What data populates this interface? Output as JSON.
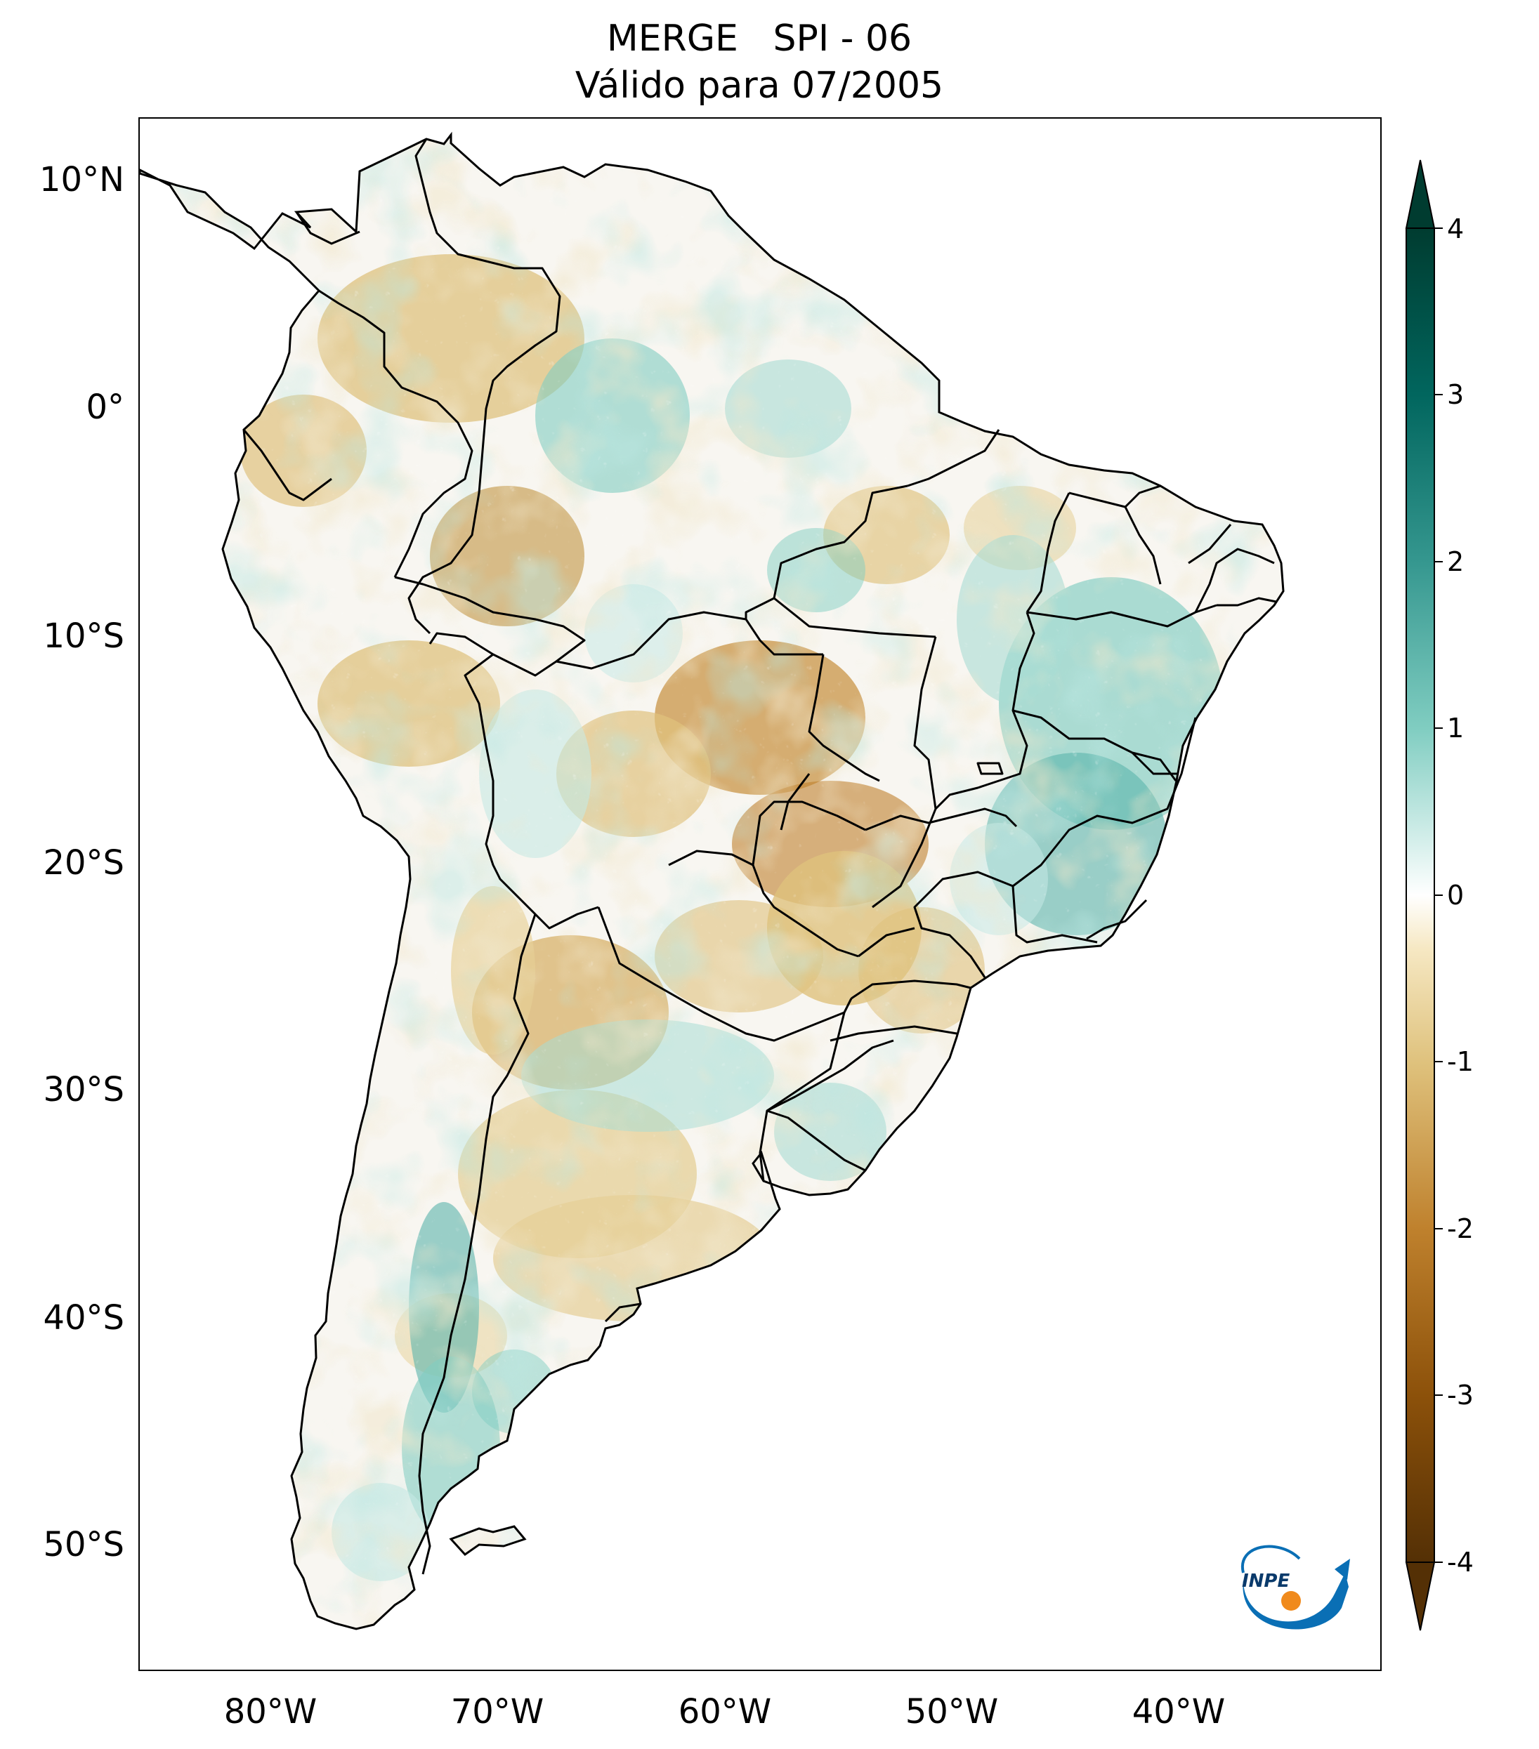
{
  "title": {
    "line1": "MERGE   SPI - 06",
    "line2": "Válido para 07/2005"
  },
  "axes": {
    "lat_labels": [
      "10°N",
      "0°",
      "10°S",
      "20°S",
      "30°S",
      "40°S",
      "50°S"
    ],
    "lon_labels": [
      "80°W",
      "70°W",
      "60°W",
      "50°W",
      "40°W"
    ]
  },
  "colorbar": {
    "tick_labels": [
      "4",
      "3",
      "2",
      "1",
      "0",
      "-1",
      "-2",
      "-3",
      "-4"
    ],
    "range": [
      -4,
      4
    ],
    "extend": "both",
    "colormap": "BrBG",
    "colors": {
      "dry_extreme": "#543005",
      "dry_strong": "#8c510a",
      "dry_moderate": "#bf812d",
      "dry_mild": "#dfc27d",
      "dry_weak": "#f6e8c3",
      "neutral": "#f5f5f5",
      "wet_weak": "#c7eae5",
      "wet_mild": "#80cdc1",
      "wet_moderate": "#35978f",
      "wet_strong": "#01665e",
      "wet_extreme": "#003c30"
    }
  },
  "logo": {
    "text": "INPE",
    "icon": "inpe-logo-icon",
    "colors": {
      "blue": "#0a6fb5",
      "orange": "#f08a1c"
    }
  }
}
